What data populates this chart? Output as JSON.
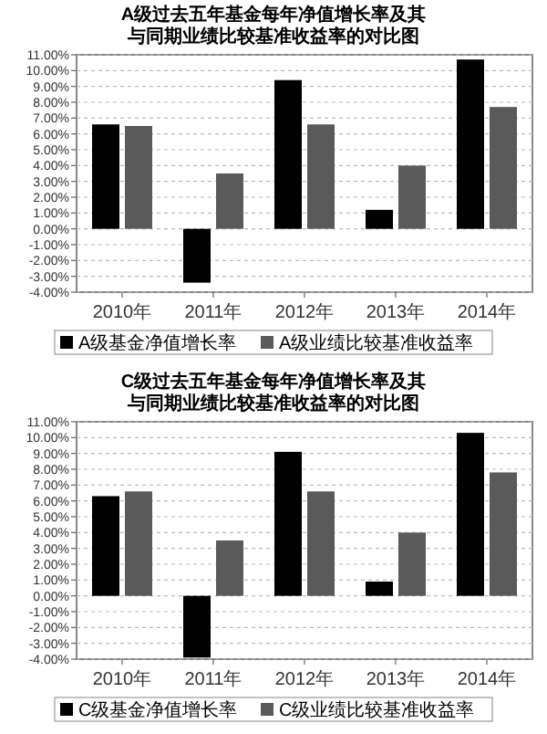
{
  "chart_data": [
    {
      "type": "bar",
      "title": "A级过去五年基金每年净值增长率及其与同期业绩比较基准收益率的对比图",
      "categories": [
        "2010年",
        "2011年",
        "2012年",
        "2013年",
        "2014年"
      ],
      "series": [
        {
          "name": "A级基金净值增长率",
          "color": "#000000",
          "values": [
            6.6,
            -3.4,
            9.4,
            1.2,
            10.7
          ]
        },
        {
          "name": "A级业绩比较基准收益率",
          "color": "#5a5a5a",
          "values": [
            6.5,
            3.5,
            6.6,
            4.0,
            7.7
          ]
        }
      ],
      "ylim": [
        -4,
        11
      ],
      "yticks": [
        {
          "value": -4,
          "label": "-4.00%"
        },
        {
          "value": -3,
          "label": "-3.00%"
        },
        {
          "value": -2,
          "label": "-2.00%"
        },
        {
          "value": -1,
          "label": "-1.00%"
        },
        {
          "value": 0,
          "label": "0.00%"
        },
        {
          "value": 1,
          "label": "1.00%"
        },
        {
          "value": 2,
          "label": "2.00%"
        },
        {
          "value": 3,
          "label": "3.00%"
        },
        {
          "value": 4,
          "label": "4.00%"
        },
        {
          "value": 5,
          "label": "5.00%"
        },
        {
          "value": 6,
          "label": "6.00%"
        },
        {
          "value": 7,
          "label": "7.00%"
        },
        {
          "value": 8,
          "label": "8.00%"
        },
        {
          "value": 9,
          "label": "9.00%"
        },
        {
          "value": 10,
          "label": "10.00%"
        },
        {
          "value": 11,
          "label": "11.00%"
        }
      ],
      "grid": "y",
      "legend": "bottom"
    },
    {
      "type": "bar",
      "title": "C级过去五年基金每年净值增长率及其与同期业绩比较基准收益率的对比图",
      "categories": [
        "2010年",
        "2011年",
        "2012年",
        "2013年",
        "2014年"
      ],
      "series": [
        {
          "name": "C级基金净值增长率",
          "color": "#000000",
          "values": [
            6.3,
            -3.9,
            9.1,
            0.9,
            10.3
          ]
        },
        {
          "name": "C级业绩比较基准收益率",
          "color": "#5a5a5a",
          "values": [
            6.6,
            3.5,
            6.6,
            4.0,
            7.8
          ]
        }
      ],
      "ylim": [
        -4,
        11
      ],
      "yticks": [
        {
          "value": -4,
          "label": "-4.00%"
        },
        {
          "value": -3,
          "label": "-3.00%"
        },
        {
          "value": -2,
          "label": "-2.00%"
        },
        {
          "value": -1,
          "label": "-1.00%"
        },
        {
          "value": 0,
          "label": "0.00%"
        },
        {
          "value": 1,
          "label": "1.00%"
        },
        {
          "value": 2,
          "label": "2.00%"
        },
        {
          "value": 3,
          "label": "3.00%"
        },
        {
          "value": 4,
          "label": "4.00%"
        },
        {
          "value": 5,
          "label": "5.00%"
        },
        {
          "value": 6,
          "label": "6.00%"
        },
        {
          "value": 7,
          "label": "7.00%"
        },
        {
          "value": 8,
          "label": "8.00%"
        },
        {
          "value": 9,
          "label": "9.00%"
        },
        {
          "value": 10,
          "label": "10.00%"
        },
        {
          "value": 11,
          "label": "11.00%"
        }
      ],
      "grid": "y",
      "legend": "bottom"
    }
  ]
}
